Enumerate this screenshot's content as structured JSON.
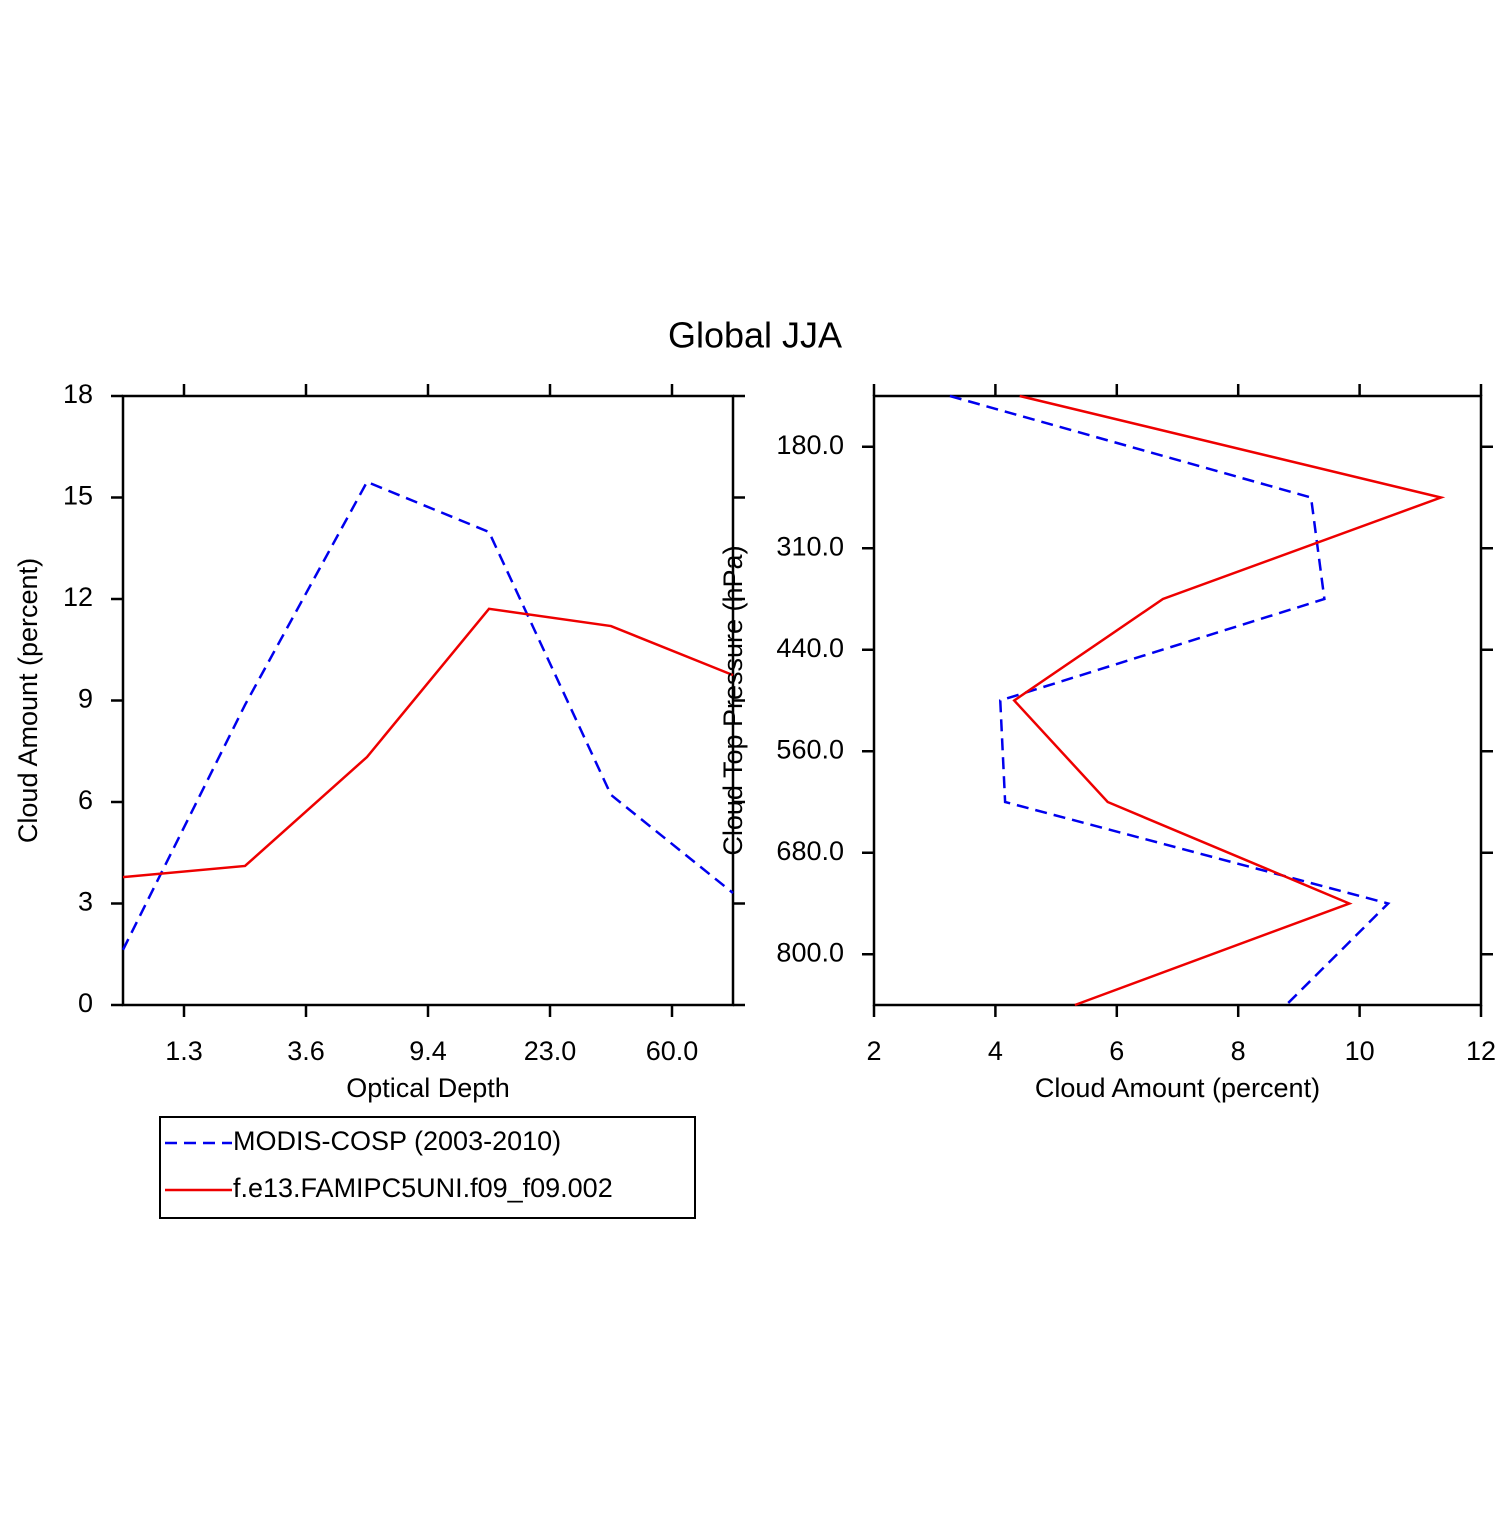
{
  "chart_data": [
    {
      "type": "line",
      "title": "Global JJA",
      "orientation": "vertical",
      "x_label": "Optical Depth",
      "y_label": "Cloud Amount (percent)",
      "categories": [
        null,
        null,
        null,
        null,
        null,
        null
      ],
      "boundary_labels": [
        "1.3",
        "3.6",
        "9.4",
        "23.0",
        "60.0"
      ],
      "ylim": [
        0,
        18
      ],
      "yticks": [
        0,
        3,
        6,
        9,
        12,
        15,
        18
      ],
      "legend": "below-left",
      "series": [
        {
          "name": "MODIS-COSP (2003-2010)",
          "color": "#0000ee",
          "dashed": true,
          "values": [
            1.63,
            8.87,
            15.46,
            13.98,
            6.21,
            3.31
          ]
        },
        {
          "name": "f.e13.FAMIPC5UNI.f09_f09.002",
          "color": "#ee0000",
          "dashed": false,
          "values": [
            3.78,
            4.11,
            7.33,
            11.71,
            11.2,
            9.75
          ]
        }
      ]
    },
    {
      "type": "line",
      "orientation": "horizontal",
      "x_label": "Cloud Amount (percent)",
      "y_label": "Cloud Top Pressure (hPa)",
      "categories": [
        null,
        null,
        null,
        null,
        null,
        null,
        null
      ],
      "boundary_labels": [
        "180.0",
        "310.0",
        "440.0",
        "560.0",
        "680.0",
        "800.0"
      ],
      "xlim": [
        2,
        12
      ],
      "xticks": [
        2,
        4,
        6,
        8,
        10,
        12
      ],
      "series": [
        {
          "color": "#0000ee",
          "dashed": true,
          "values": [
            3.25,
            9.2,
            9.42,
            4.08,
            4.16,
            10.47,
            8.79
          ]
        },
        {
          "color": "#ee0000",
          "dashed": false,
          "values": [
            4.4,
            11.34,
            6.76,
            4.31,
            5.85,
            9.83,
            5.31
          ]
        }
      ]
    }
  ]
}
